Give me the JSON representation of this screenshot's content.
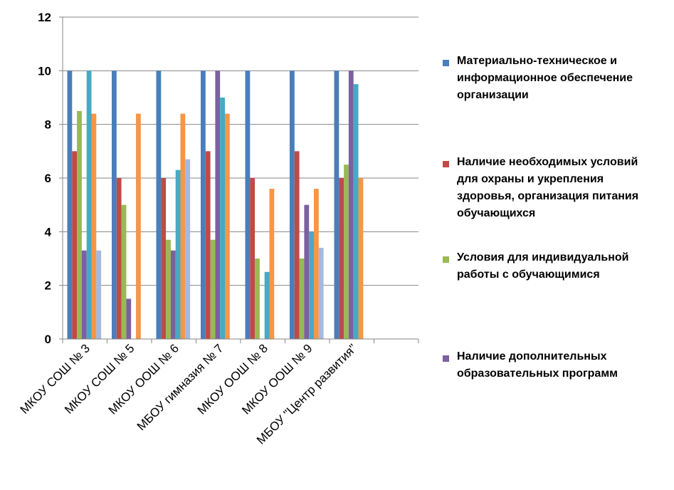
{
  "chart_data": {
    "type": "bar",
    "categories": [
      "МКОУ СОШ № 3",
      "МКОУ СОШ № 5",
      "МКОУ ООШ № 6",
      "МБОУ гимназия № 7",
      "МКОУ ООШ № 8",
      "МКОУ ООШ № 9",
      "МБОУ \"Центр развития\"",
      ""
    ],
    "ylim": [
      0,
      12
    ],
    "yticks": [
      0,
      2,
      4,
      6,
      8,
      10,
      12
    ],
    "grid": true,
    "legend_position": "right",
    "series": [
      {
        "name": "Материально-техническое  и\nинформационное обеспечение\nорганизации",
        "color": "#4a7ebb",
        "values": [
          10,
          10,
          10,
          10,
          10,
          10,
          10,
          null
        ]
      },
      {
        "name": "Наличие необходимых условий\nдля охраны и укрепления\nздоровья, организация питания\nобучающихся",
        "color": "#be4b48",
        "values": [
          7,
          6,
          6,
          7,
          6,
          7,
          6,
          null
        ]
      },
      {
        "name": "Условия для индивидуальной\nработы с обучающимися",
        "color": "#98b954",
        "values": [
          8.5,
          5,
          3.7,
          3.7,
          3,
          3,
          6.5,
          null
        ]
      },
      {
        "name": "Наличие дополнительных\nобразовательных программ",
        "color": "#7d60a0",
        "values": [
          3.3,
          1.5,
          3.3,
          10,
          null,
          5,
          10,
          null
        ]
      },
      {
        "color": "#46aac4",
        "values": [
          10,
          null,
          6.3,
          9,
          2.5,
          4,
          9.5,
          null
        ]
      },
      {
        "color": "#f79646",
        "values": [
          8.4,
          8.4,
          8.4,
          8.4,
          5.6,
          5.6,
          6,
          null
        ]
      },
      {
        "color": "#a5b9e0",
        "values": [
          3.3,
          null,
          6.7,
          null,
          null,
          3.4,
          null,
          null
        ]
      }
    ]
  }
}
